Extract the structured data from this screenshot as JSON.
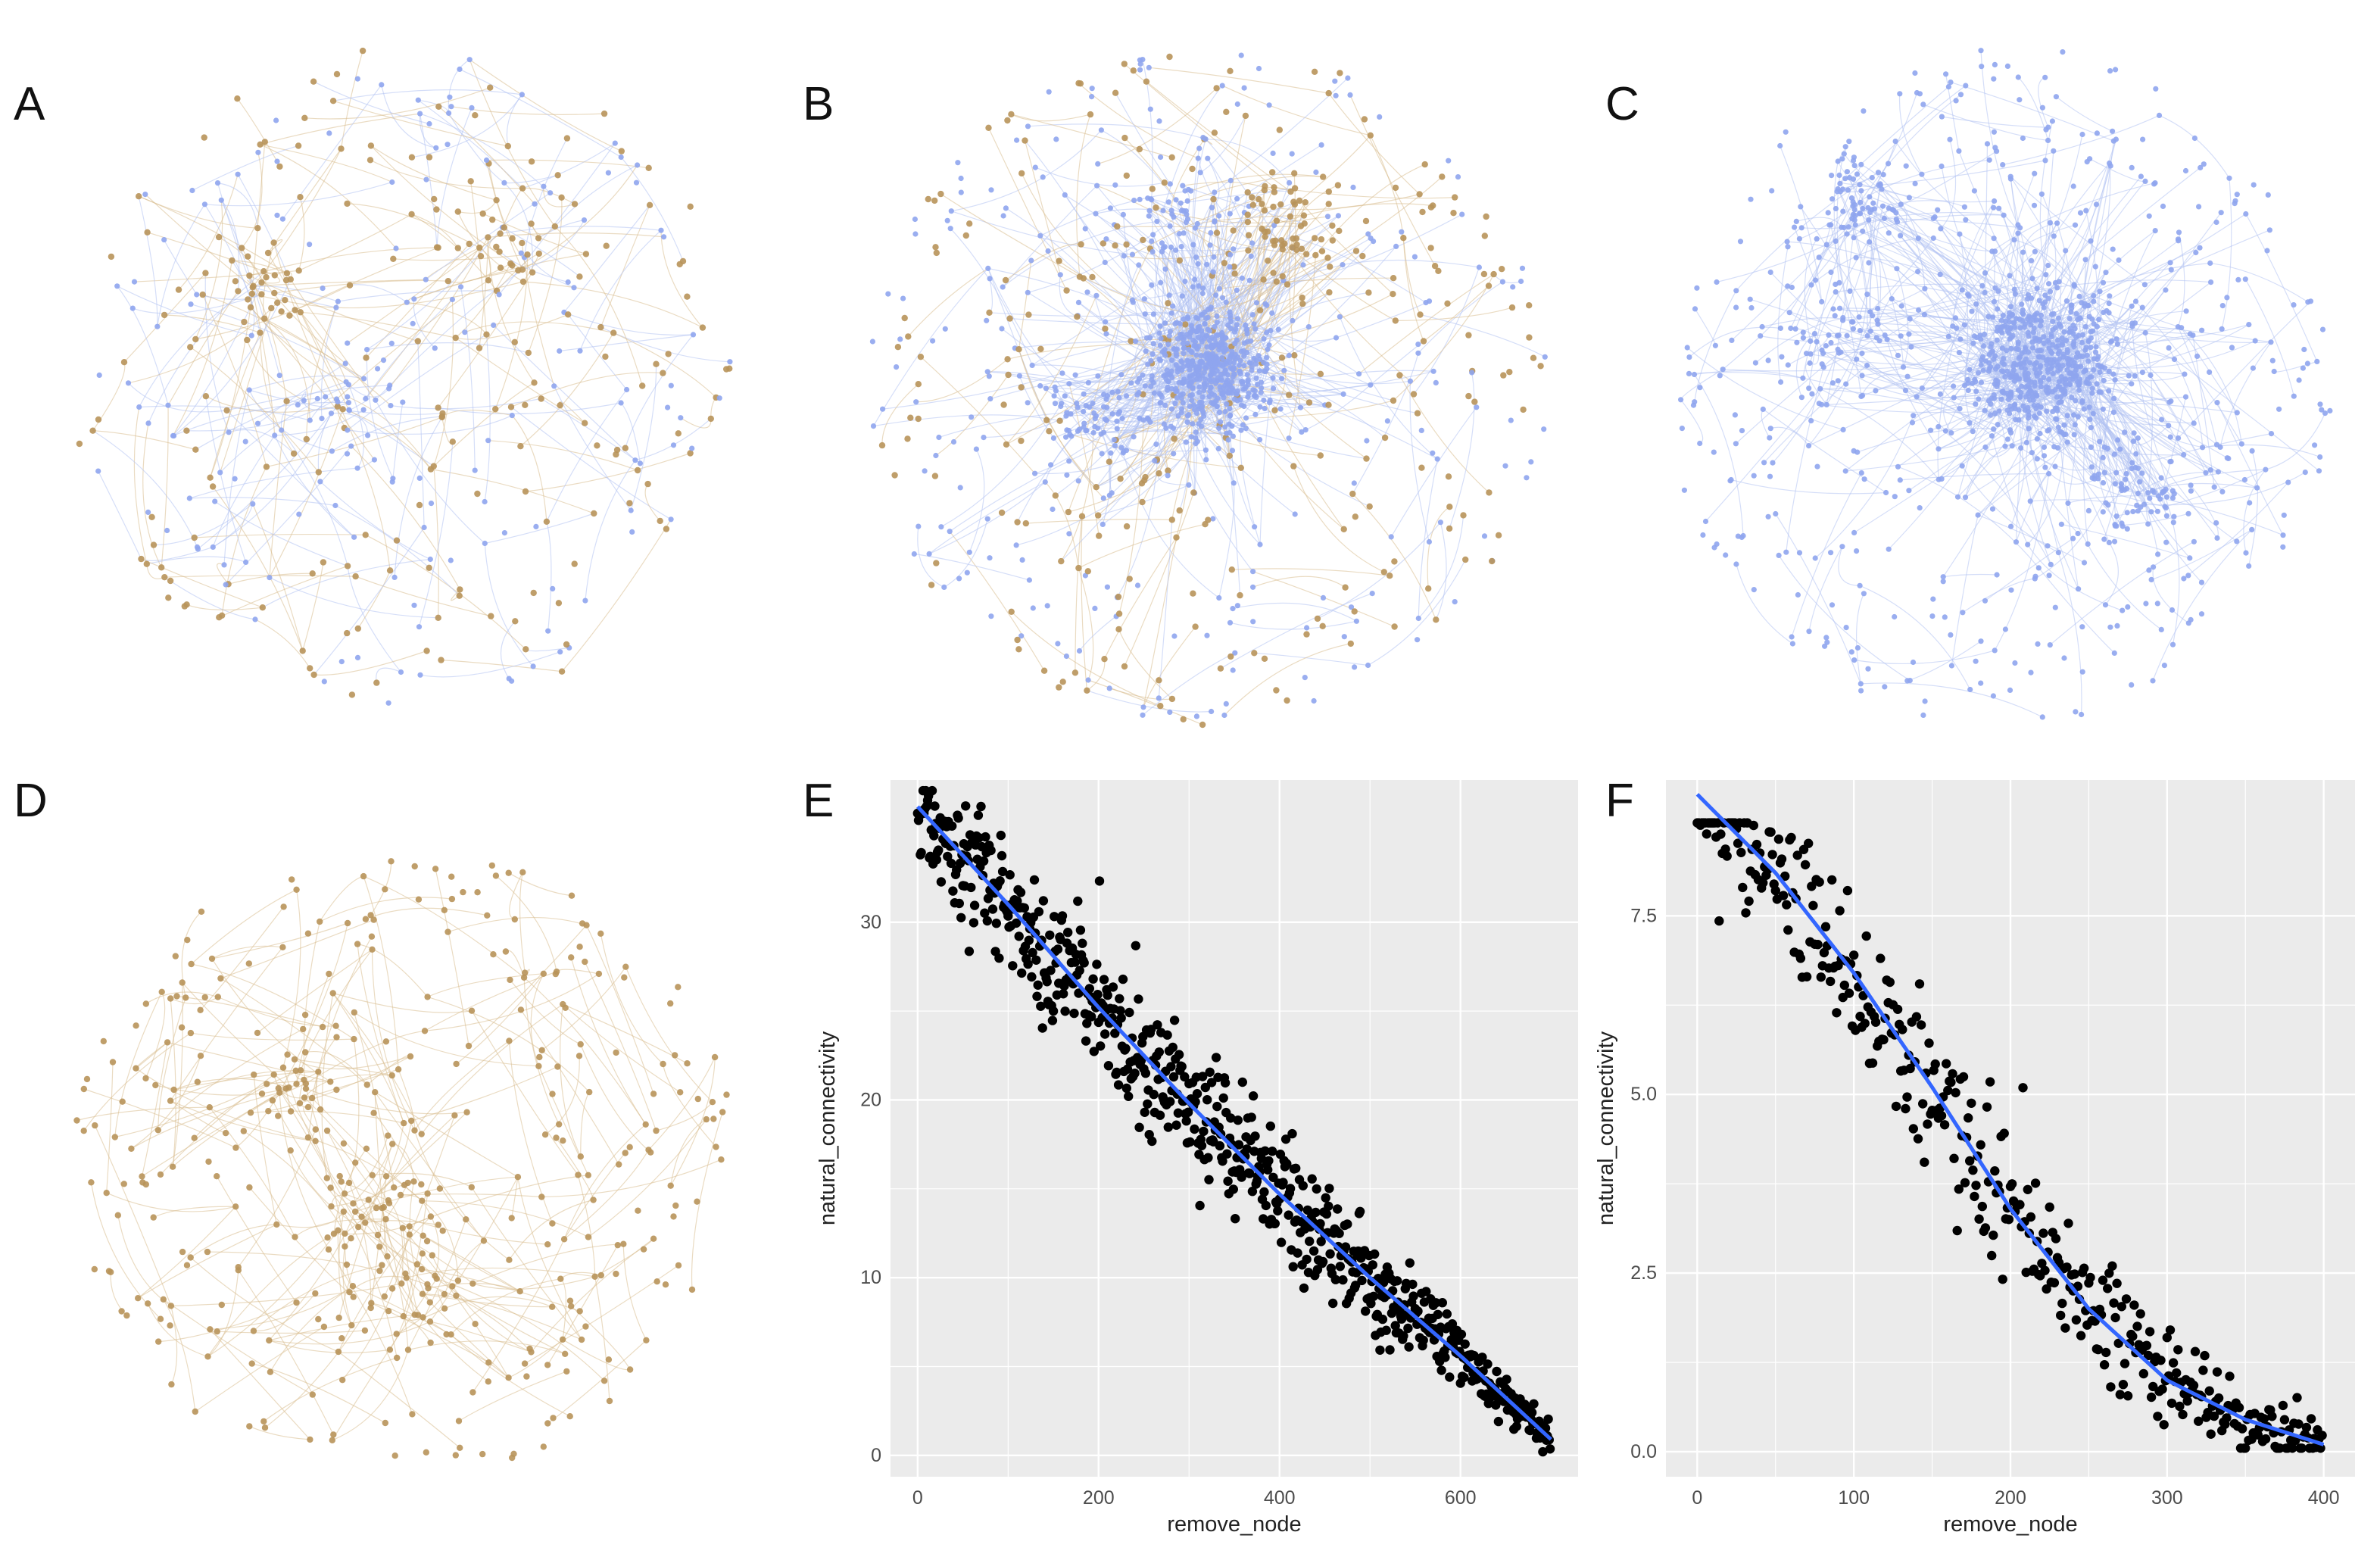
{
  "figure": {
    "panels": [
      "A",
      "B",
      "C",
      "D",
      "E",
      "F"
    ]
  },
  "colors": {
    "negative_node": "#b8935a",
    "positive_node": "#8fa5ee",
    "negative_edge": "#d9bd8f",
    "positive_edge": "#b3c3f2",
    "panel_bg": "#ebebeb",
    "gridline": "#ffffff",
    "point": "#000000",
    "fit_line": "#3366ff"
  },
  "networks": [
    {
      "panel": "A",
      "type": "network",
      "node_colors": [
        "positive_node",
        "negative_node"
      ],
      "dense_cluster": false
    },
    {
      "panel": "B",
      "type": "network",
      "node_colors": [
        "positive_node",
        "negative_node"
      ],
      "dense_cluster": true
    },
    {
      "panel": "C",
      "type": "network",
      "node_colors": [
        "positive_node"
      ],
      "dense_cluster": true
    },
    {
      "panel": "D",
      "type": "network",
      "node_colors": [
        "negative_node"
      ],
      "dense_cluster": false
    }
  ],
  "chart_data": [
    {
      "panel": "E",
      "type": "scatter",
      "title": "",
      "xlabel": "remove_node",
      "ylabel": "natural_connectivity",
      "xlim": [
        -30,
        730
      ],
      "ylim": [
        -1.2,
        38
      ],
      "xticks": [
        0,
        200,
        400,
        600
      ],
      "yticks": [
        0,
        10,
        20,
        30
      ],
      "n_points": 700,
      "trend": {
        "type": "smooth",
        "x": [
          0,
          100,
          200,
          300,
          400,
          500,
          600,
          700
        ],
        "y": [
          36.5,
          31.0,
          25.2,
          19.8,
          14.7,
          10.0,
          5.6,
          0.9
        ]
      },
      "noise_sd": 1.9,
      "grid": true
    },
    {
      "panel": "F",
      "type": "scatter",
      "title": "",
      "xlabel": "remove_node",
      "ylabel": "natural_connectivity",
      "xlim": [
        -20,
        420
      ],
      "ylim": [
        -0.35,
        9.4
      ],
      "xticks": [
        0,
        100,
        200,
        300,
        400
      ],
      "yticks": [
        0.0,
        2.5,
        5.0,
        7.5
      ],
      "ytick_labels": [
        "0.0",
        "2.5",
        "5.0",
        "7.5"
      ],
      "n_points": 400,
      "trend": {
        "type": "smooth",
        "x": [
          0,
          50,
          100,
          150,
          200,
          250,
          300,
          350,
          400
        ],
        "y": [
          9.2,
          8.1,
          6.7,
          5.1,
          3.4,
          2.0,
          1.0,
          0.45,
          0.1
        ]
      },
      "noise_sd": 0.55,
      "grid": true
    }
  ]
}
